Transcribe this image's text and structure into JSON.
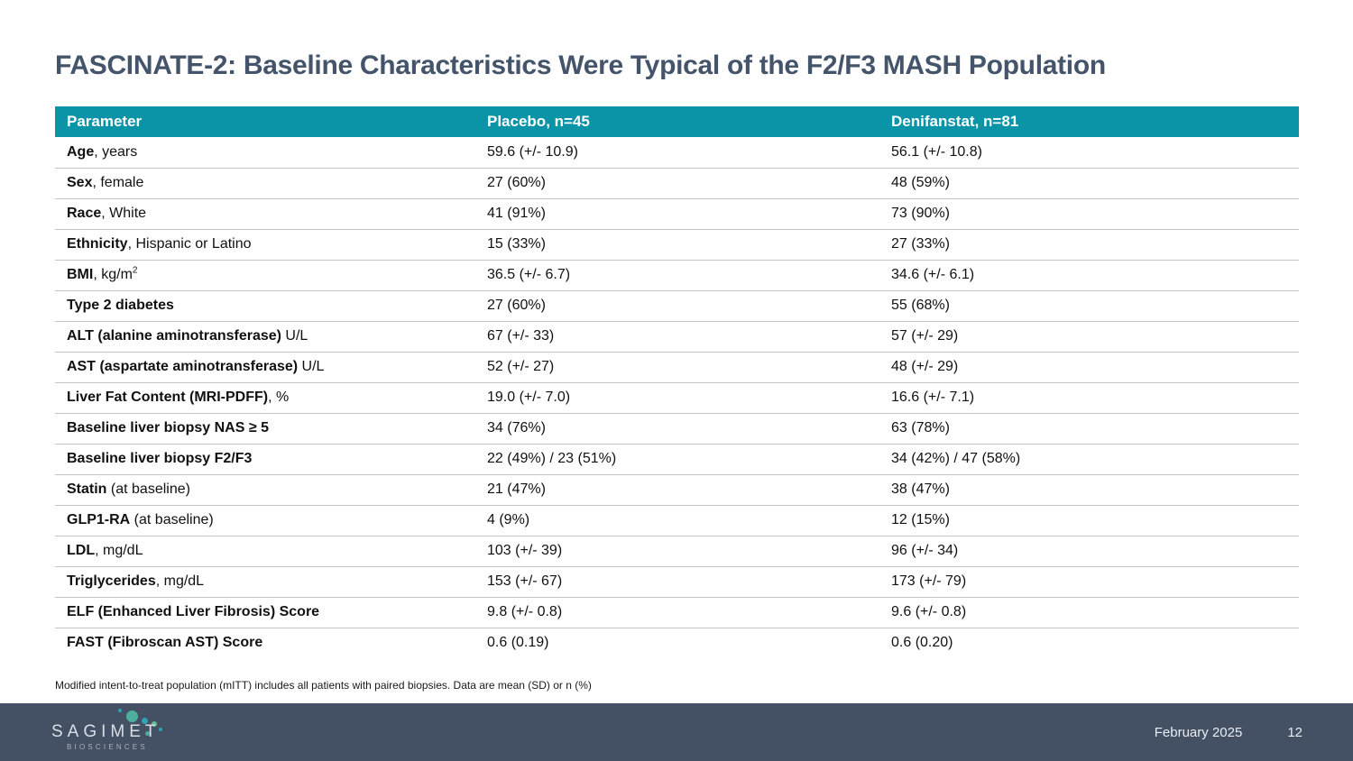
{
  "slide": {
    "title": "FASCINATE-2: Baseline Characteristics Were Typical of the F2/F3 MASH Population",
    "footnote": "Modified intent-to-treat population (mITT) includes all patients with paired biopsies. Data are mean (SD) or n (%)"
  },
  "colors": {
    "title_text": "#44546a",
    "table_header_bg": "#0b93a8",
    "row_divider": "#c3c3c3",
    "footer_bg": "#445064",
    "logo_dot_teal": "#2fa3b2",
    "logo_dot_green": "#4caf9d"
  },
  "table": {
    "columns": [
      "Parameter",
      "Placebo, n=45",
      "Denifanstat, n=81"
    ],
    "rows": [
      {
        "bold": "Age",
        "rest": ", years",
        "placebo": "59.6 (+/- 10.9)",
        "denifanstat": "56.1 (+/- 10.8)"
      },
      {
        "bold": "Sex",
        "rest": ", female",
        "placebo": "27 (60%)",
        "denifanstat": "48 (59%)"
      },
      {
        "bold": "Race",
        "rest": ", White",
        "placebo": "41 (91%)",
        "denifanstat": "73 (90%)"
      },
      {
        "bold": "Ethnicity",
        "rest": ", Hispanic or Latino",
        "placebo": "15 (33%)",
        "denifanstat": "27 (33%)"
      },
      {
        "bold": "BMI",
        "rest": ", kg/m",
        "sup": "2",
        "placebo": "36.5 (+/- 6.7)",
        "denifanstat": "34.6 (+/- 6.1)"
      },
      {
        "bold": "Type 2 diabetes",
        "rest": "",
        "placebo": "27 (60%)",
        "denifanstat": "55 (68%)"
      },
      {
        "bold": "ALT (alanine aminotransferase)",
        "rest": " U/L",
        "placebo": "67 (+/- 33)",
        "denifanstat": "57 (+/- 29)"
      },
      {
        "bold": "AST (aspartate aminotransferase)",
        "rest": " U/L",
        "placebo": "52 (+/- 27)",
        "denifanstat": "48 (+/- 29)"
      },
      {
        "bold": "Liver Fat Content (MRI-PDFF)",
        "rest": ", %",
        "placebo": "19.0 (+/- 7.0)",
        "denifanstat": "16.6 (+/- 7.1)"
      },
      {
        "bold": "Baseline liver biopsy NAS ≥ 5",
        "rest": "",
        "placebo": "34 (76%)",
        "denifanstat": "63 (78%)"
      },
      {
        "bold": "Baseline liver biopsy F2/F3",
        "rest": "",
        "placebo": "22 (49%) / 23 (51%)",
        "denifanstat": "34 (42%) / 47 (58%)"
      },
      {
        "bold": "Statin",
        "rest": " (at baseline)",
        "placebo": "21 (47%)",
        "denifanstat": "38 (47%)"
      },
      {
        "bold": "GLP1-RA",
        "rest": " (at baseline)",
        "placebo": "4 (9%)",
        "denifanstat": "12 (15%)"
      },
      {
        "bold": "LDL",
        "rest": ", mg/dL",
        "placebo": "103 (+/- 39)",
        "denifanstat": "96 (+/- 34)"
      },
      {
        "bold": "Triglycerides",
        "rest": ", mg/dL",
        "placebo": "153 (+/- 67)",
        "denifanstat": "173 (+/- 79)"
      },
      {
        "bold": "ELF (Enhanced Liver Fibrosis) Score",
        "rest": "",
        "placebo": "9.8 (+/- 0.8)",
        "denifanstat": "9.6 (+/- 0.8)"
      },
      {
        "bold": "FAST (Fibroscan AST) Score",
        "rest": "",
        "placebo": "0.6 (0.19)",
        "denifanstat": "0.6 (0.20)"
      }
    ]
  },
  "footer": {
    "logo_text": "SAGIMET",
    "logo_subtext": "BIOSCIENCES",
    "date": "February 2025",
    "page_number": "12"
  }
}
